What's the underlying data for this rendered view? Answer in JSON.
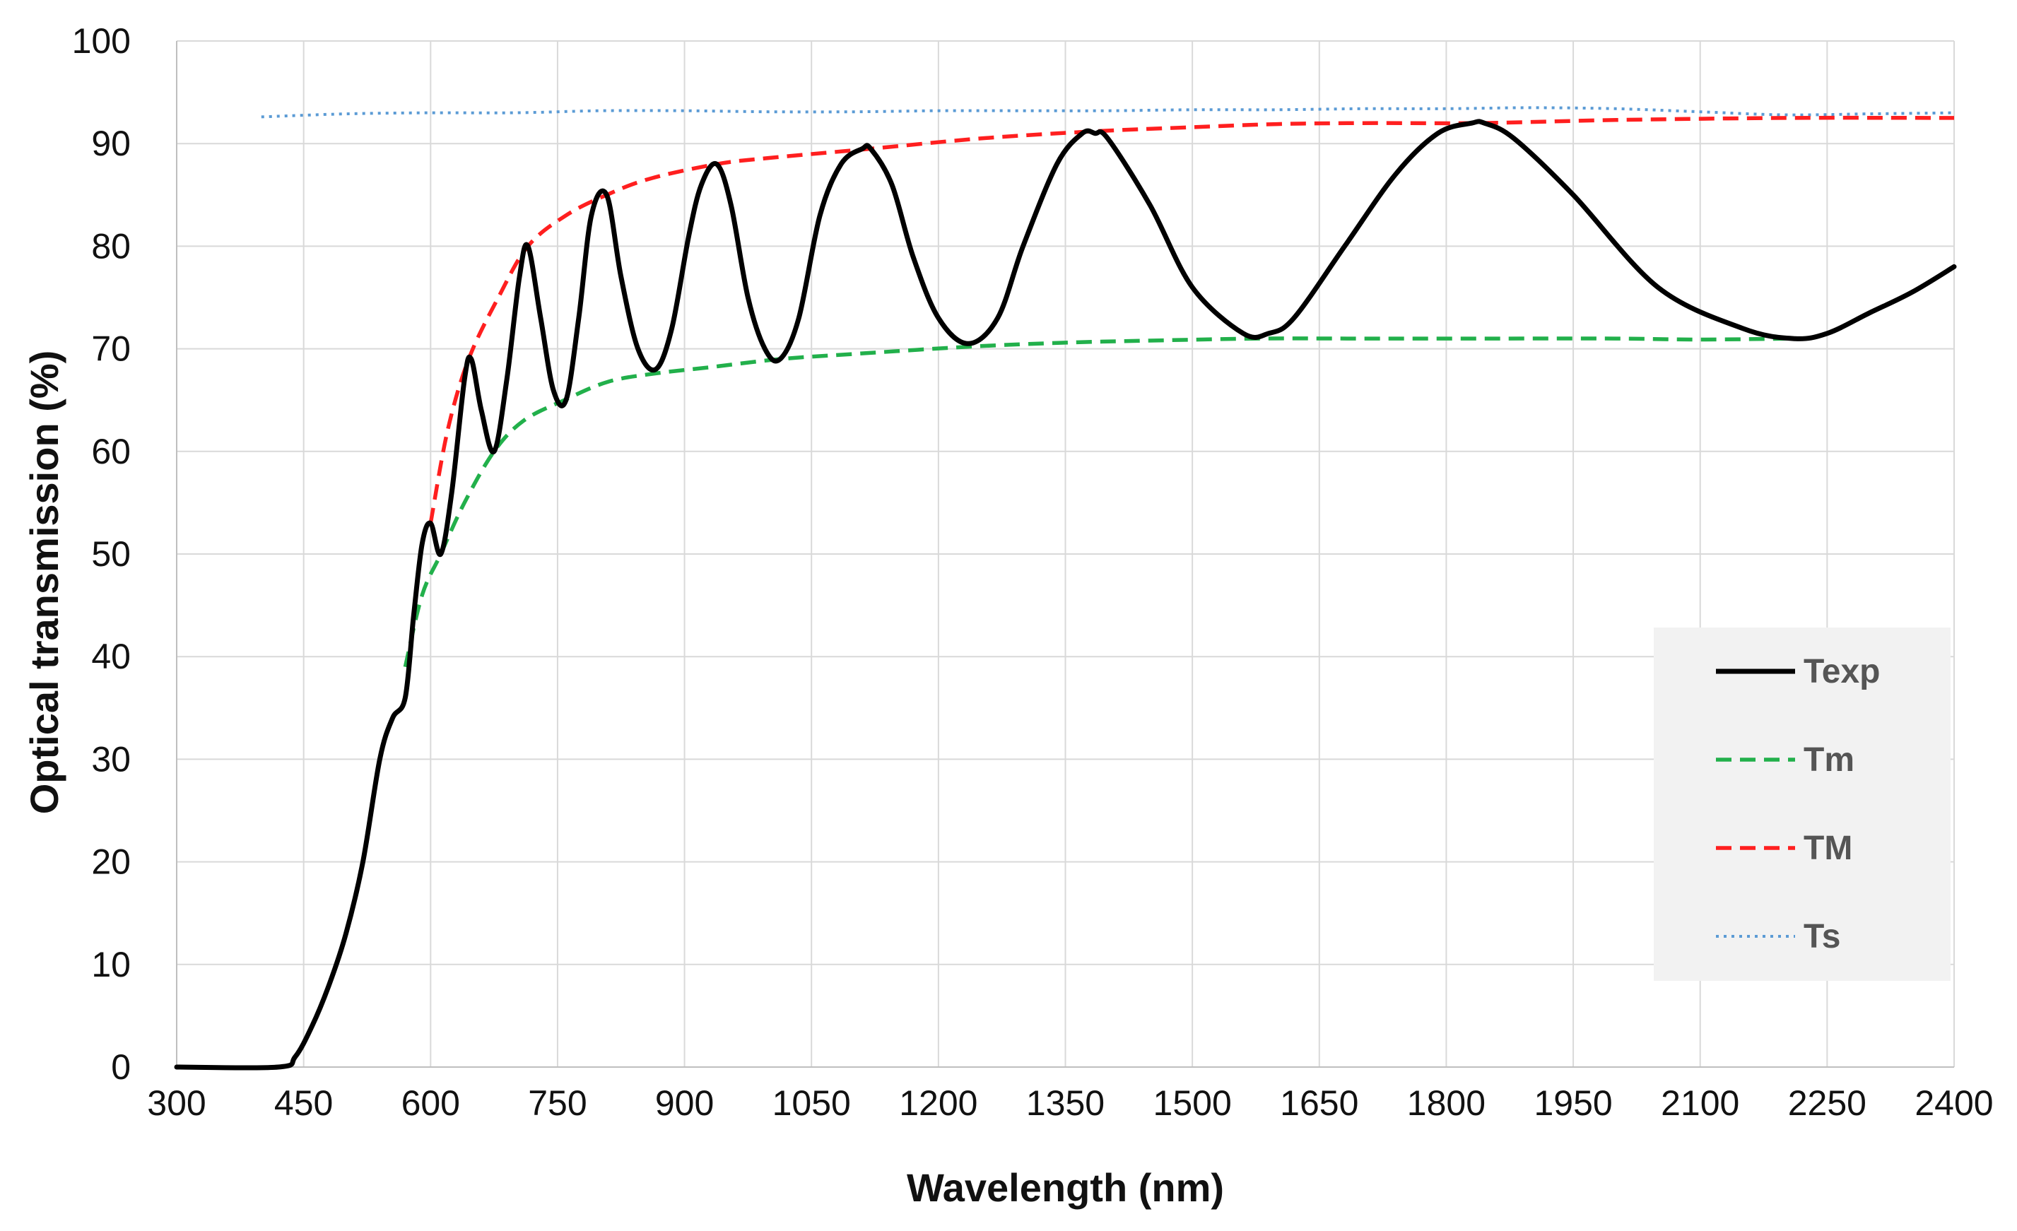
{
  "chart_data": {
    "type": "line",
    "title": "",
    "xlabel": "Wavelength (nm)",
    "ylabel": "Optical transmission (%)",
    "xlim": [
      300,
      2400
    ],
    "ylim": [
      0,
      100
    ],
    "xticks": [
      300,
      450,
      600,
      750,
      900,
      1050,
      1200,
      1350,
      1500,
      1650,
      1800,
      1950,
      2100,
      2250,
      2400
    ],
    "yticks": [
      0,
      10,
      20,
      30,
      40,
      50,
      60,
      70,
      80,
      90,
      100
    ],
    "grid": "vertical and horizontal",
    "legend_position": "right",
    "series": [
      {
        "name": "Texp",
        "color": "#000000",
        "style": "solid",
        "x": [
          300,
          420,
          440,
          460,
          480,
          500,
          520,
          540,
          555,
          570,
          580,
          590,
          600,
          612,
          625,
          640,
          648,
          660,
          675,
          690,
          705,
          715,
          730,
          745,
          760,
          775,
          790,
          808,
          825,
          845,
          866,
          885,
          905,
          920,
          938,
          955,
          975,
          995,
          1013,
          1035,
          1060,
          1085,
          1110,
          1120,
          1145,
          1170,
          1200,
          1235,
          1270,
          1300,
          1340,
          1370,
          1385,
          1400,
          1450,
          1500,
          1560,
          1590,
          1620,
          1680,
          1740,
          1790,
          1830,
          1845,
          1880,
          1950,
          2050,
          2150,
          2210,
          2250,
          2300,
          2350,
          2400
        ],
        "y": [
          0,
          0,
          1,
          4,
          8,
          13,
          20,
          30,
          34,
          36,
          44,
          51,
          53,
          50,
          56,
          67,
          69,
          64,
          60,
          67,
          77,
          80,
          73,
          66,
          65,
          73,
          83,
          85,
          77,
          70,
          68,
          72,
          81,
          86,
          88,
          84,
          75,
          70,
          69,
          73,
          83,
          88,
          89.5,
          89.5,
          86,
          79,
          73,
          70.5,
          73,
          80,
          88,
          91,
          91,
          90.5,
          84,
          76,
          71.5,
          71.5,
          73,
          80,
          87,
          91,
          92,
          92,
          90.5,
          85,
          76,
          72,
          71,
          71.5,
          73.5,
          75.5,
          78
        ]
      },
      {
        "name": "Tm",
        "color": "#22b04b",
        "style": "dashed",
        "x": [
          570,
          590,
          612,
          640,
          675,
          710,
          758,
          810,
          866,
          930,
          1013,
          1100,
          1235,
          1350,
          1450,
          1580,
          1700,
          1850,
          2000,
          2100,
          2210
        ],
        "y": [
          39,
          46,
          50,
          55,
          60,
          63,
          65,
          66.8,
          67.6,
          68.2,
          69,
          69.5,
          70.2,
          70.6,
          70.8,
          71,
          71,
          71,
          71,
          70.9,
          71
        ]
      },
      {
        "name": "TM",
        "color": "#ff1f1f",
        "style": "dashed",
        "x": [
          600,
          620,
          645,
          680,
          715,
          760,
          808,
          860,
          938,
          1000,
          1120,
          1250,
          1385,
          1500,
          1600,
          1700,
          1840,
          2000,
          2200,
          2400
        ],
        "y": [
          53,
          62,
          69,
          75,
          80,
          83,
          85,
          86.6,
          88,
          88.6,
          89.5,
          90.5,
          91.2,
          91.6,
          91.9,
          92,
          92,
          92.3,
          92.5,
          92.5
        ]
      },
      {
        "name": "Ts",
        "color": "#5b9bd5",
        "style": "dotted",
        "x": [
          400,
          500,
          600,
          700,
          800,
          900,
          1000,
          1100,
          1200,
          1300,
          1400,
          1500,
          1600,
          1700,
          1800,
          1900,
          2000,
          2100,
          2200,
          2300,
          2400
        ],
        "y": [
          92.6,
          92.9,
          93,
          93,
          93.2,
          93.2,
          93.1,
          93.1,
          93.2,
          93.2,
          93.2,
          93.3,
          93.3,
          93.4,
          93.4,
          93.5,
          93.4,
          93.1,
          92.8,
          92.9,
          93
        ]
      }
    ]
  }
}
